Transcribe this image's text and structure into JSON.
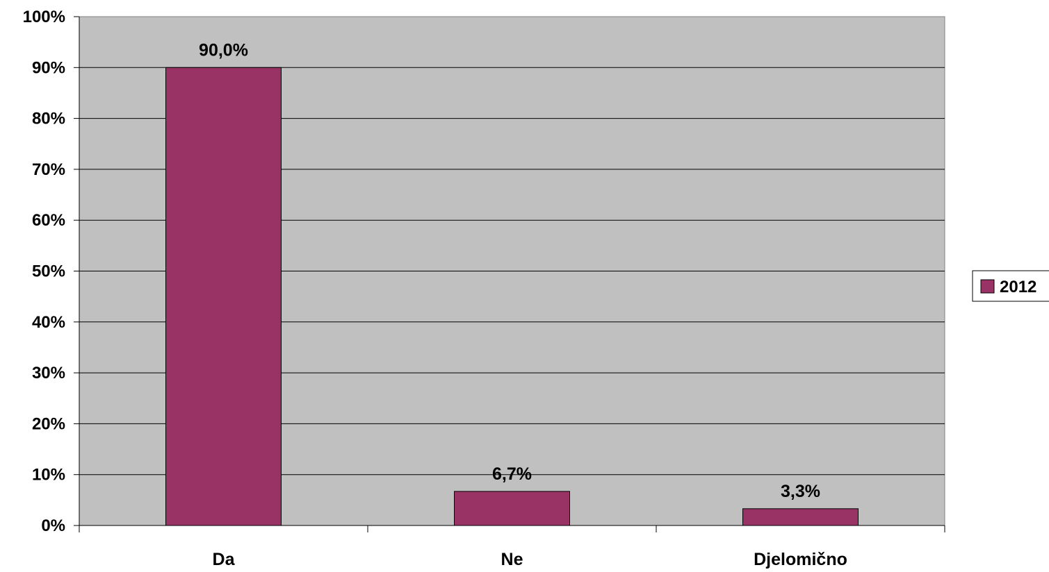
{
  "chart_data": {
    "type": "bar",
    "categories": [
      "Da",
      "Ne",
      "Djelomično"
    ],
    "series": [
      {
        "name": "2012",
        "values": [
          90.0,
          6.7,
          3.3
        ],
        "color": "#993366"
      }
    ],
    "data_labels": [
      "90,0%",
      "6,7%",
      "3,3%"
    ],
    "y_ticks": [
      0,
      10,
      20,
      30,
      40,
      50,
      60,
      70,
      80,
      90,
      100
    ],
    "y_tick_labels": [
      "0%",
      "10%",
      "20%",
      "30%",
      "40%",
      "50%",
      "60%",
      "70%",
      "80%",
      "90%",
      "100%"
    ],
    "ylim": [
      0,
      100
    ],
    "grid": true,
    "legend": "right",
    "plot_background": "#c0c0c0"
  }
}
